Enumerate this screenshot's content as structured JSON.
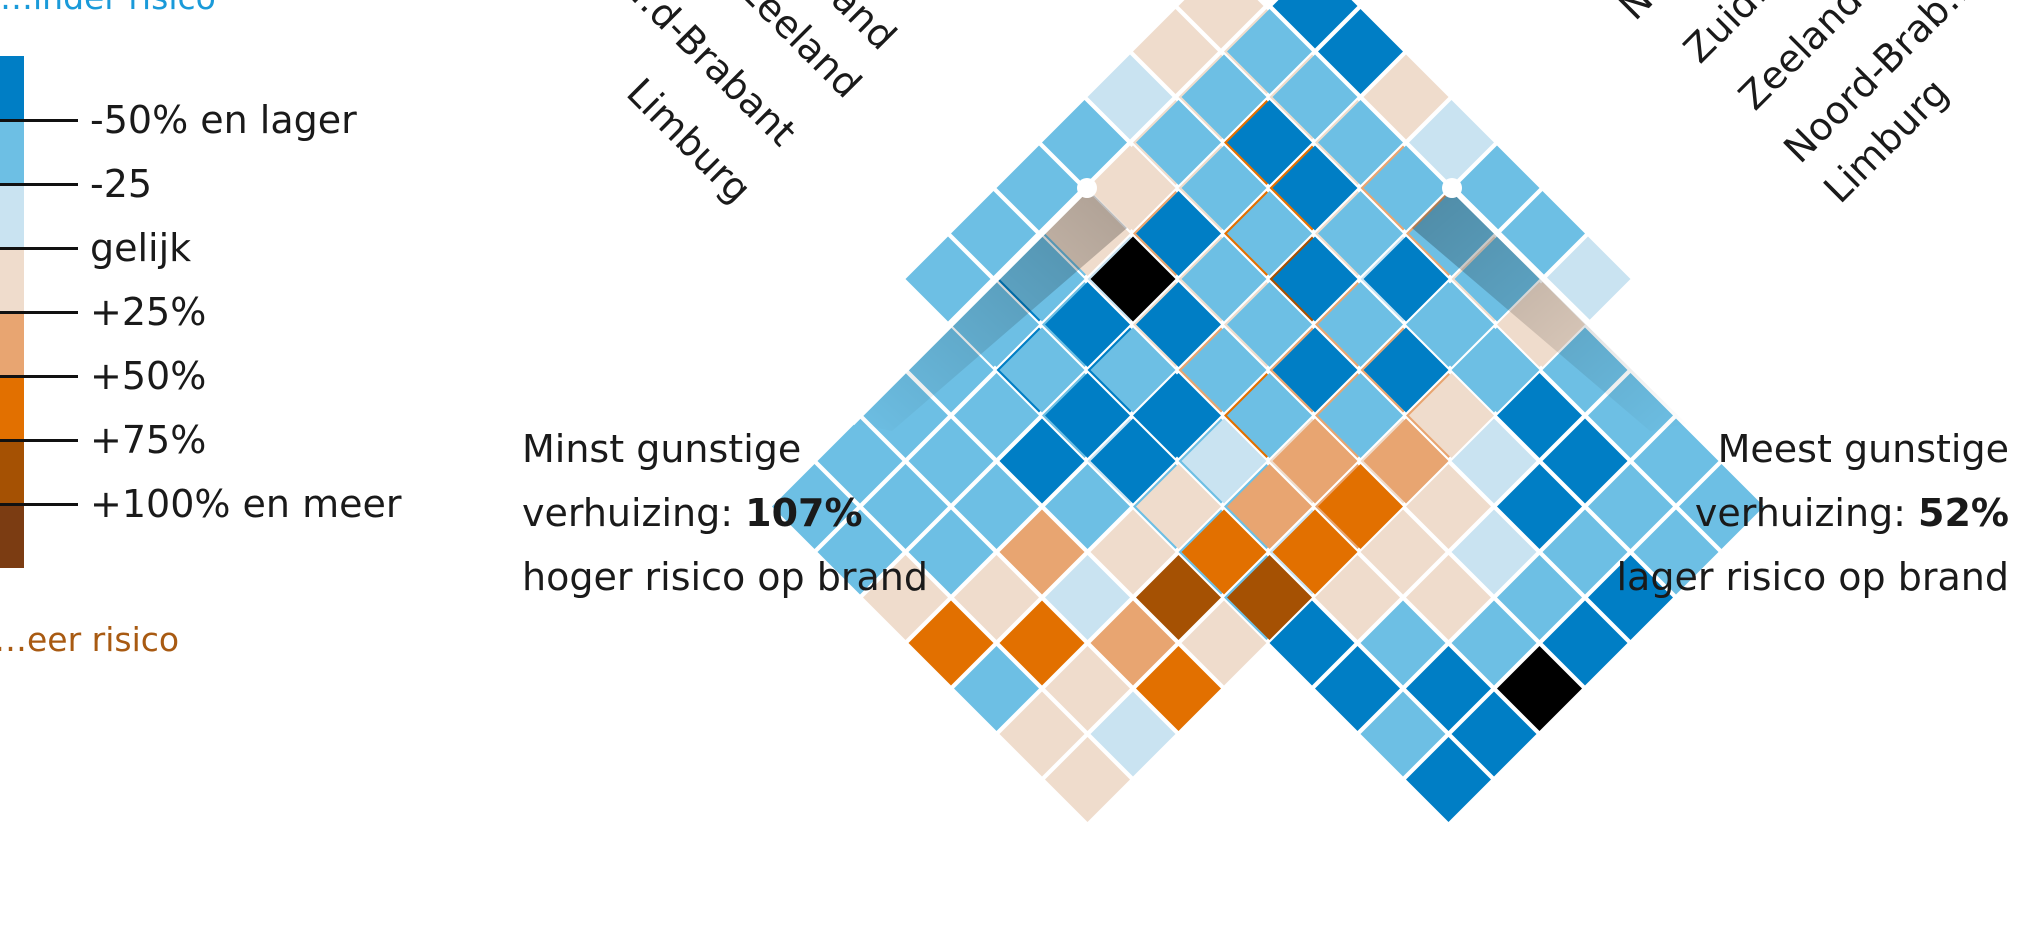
{
  "chart_data": [
    {
      "type": "heatmap",
      "title": "",
      "row_labels_visible": [
        "…and",
        "…d",
        "…d-Brabant",
        "Zeeland",
        "Limburg"
      ],
      "note": "left triangle",
      "levels": [
        [
          1,
          1,
          1,
          1,
          2,
          2,
          1,
          1,
          -1,
          -1,
          -1,
          -1
        ],
        [
          1,
          1,
          3,
          3,
          1,
          0,
          -1,
          -1,
          -2,
          -2,
          -1,
          -1
        ],
        [
          0,
          1,
          1,
          3,
          4,
          2,
          2,
          2,
          0,
          -2,
          -1,
          -2
        ],
        [
          -1,
          1,
          2,
          1,
          1,
          2,
          2,
          1,
          1,
          0,
          -1,
          -2
        ],
        [
          -1,
          -1,
          0,
          1,
          2,
          3,
          1,
          2,
          1,
          1,
          -1,
          -3
        ],
        [
          -1,
          -2,
          -1,
          -2,
          -2,
          -1,
          -1,
          0,
          1,
          -1,
          -2,
          -2
        ],
        [
          -1,
          -1,
          -2,
          -1,
          0,
          -1,
          -1,
          -1,
          -2,
          -2,
          -1,
          -2
        ]
      ],
      "highlight": {
        "label": "Minst gunstige verhuizing",
        "value_pct": 107
      }
    },
    {
      "type": "heatmap",
      "title": "",
      "row_labels_visible": [
        "N…",
        "Zuid…",
        "Zeeland",
        "Noord-Brab…",
        "Limburg"
      ],
      "note": "right triangle",
      "levels": [
        [
          -2,
          -1,
          -1,
          -1,
          1,
          1,
          -1,
          -1,
          -1,
          -1,
          -1,
          -1
        ],
        [
          -2,
          -1,
          -2,
          -1,
          -2,
          -3,
          -2,
          -1,
          -1,
          -1,
          -1,
          -1
        ],
        [
          1,
          -1,
          -2,
          -1,
          -1,
          -2,
          -1,
          -2,
          -2,
          -1,
          -1,
          1
        ],
        [
          0,
          -1,
          -1,
          -2,
          -1,
          -1,
          -2,
          -2,
          -1,
          2,
          1,
          3
        ],
        [
          -1,
          -1,
          -2,
          -1,
          -2,
          -1,
          0,
          1,
          1,
          0,
          3,
          -1
        ],
        [
          -1,
          -1,
          -1,
          -2,
          -1,
          2,
          2,
          3,
          4,
          2,
          1,
          1
        ],
        [
          0,
          1,
          -1,
          1,
          2,
          3,
          3,
          4,
          1,
          3,
          0,
          1
        ]
      ],
      "highlight": {
        "label": "Meest gunstige verhuizing",
        "value_pct": -52
      }
    }
  ],
  "legend": {
    "top_title": "…inder risico",
    "bottom_title": "…eer risico",
    "labels": [
      "-50% en lager",
      "-25",
      "gelijk",
      "+25%",
      "+50%",
      "+75%",
      "+100% en meer"
    ],
    "colors": [
      "#007ec5",
      "#6dbfe4",
      "#c9e3f1",
      "#efdccc",
      "#e8a571",
      "#e27000",
      "#a55103",
      "#7b3c12"
    ]
  },
  "left_labels": [
    "…and",
    "…d",
    "…d-Brabant",
    "Zeeland",
    "Limburg"
  ],
  "right_labels": [
    "N…",
    "Zuid…",
    "Zeeland",
    "Noord-Brab…",
    "Limburg"
  ],
  "annotation_left": {
    "line1": "Minst gunstige",
    "line2_prefix": "verhuizing: ",
    "line2_value": "107%",
    "line3": "hoger risico op brand"
  },
  "annotation_right": {
    "line1": "Meest gunstige",
    "line2_prefix": "verhuizing: ",
    "line2_value": "52%",
    "line3": "lager risico op brand"
  }
}
